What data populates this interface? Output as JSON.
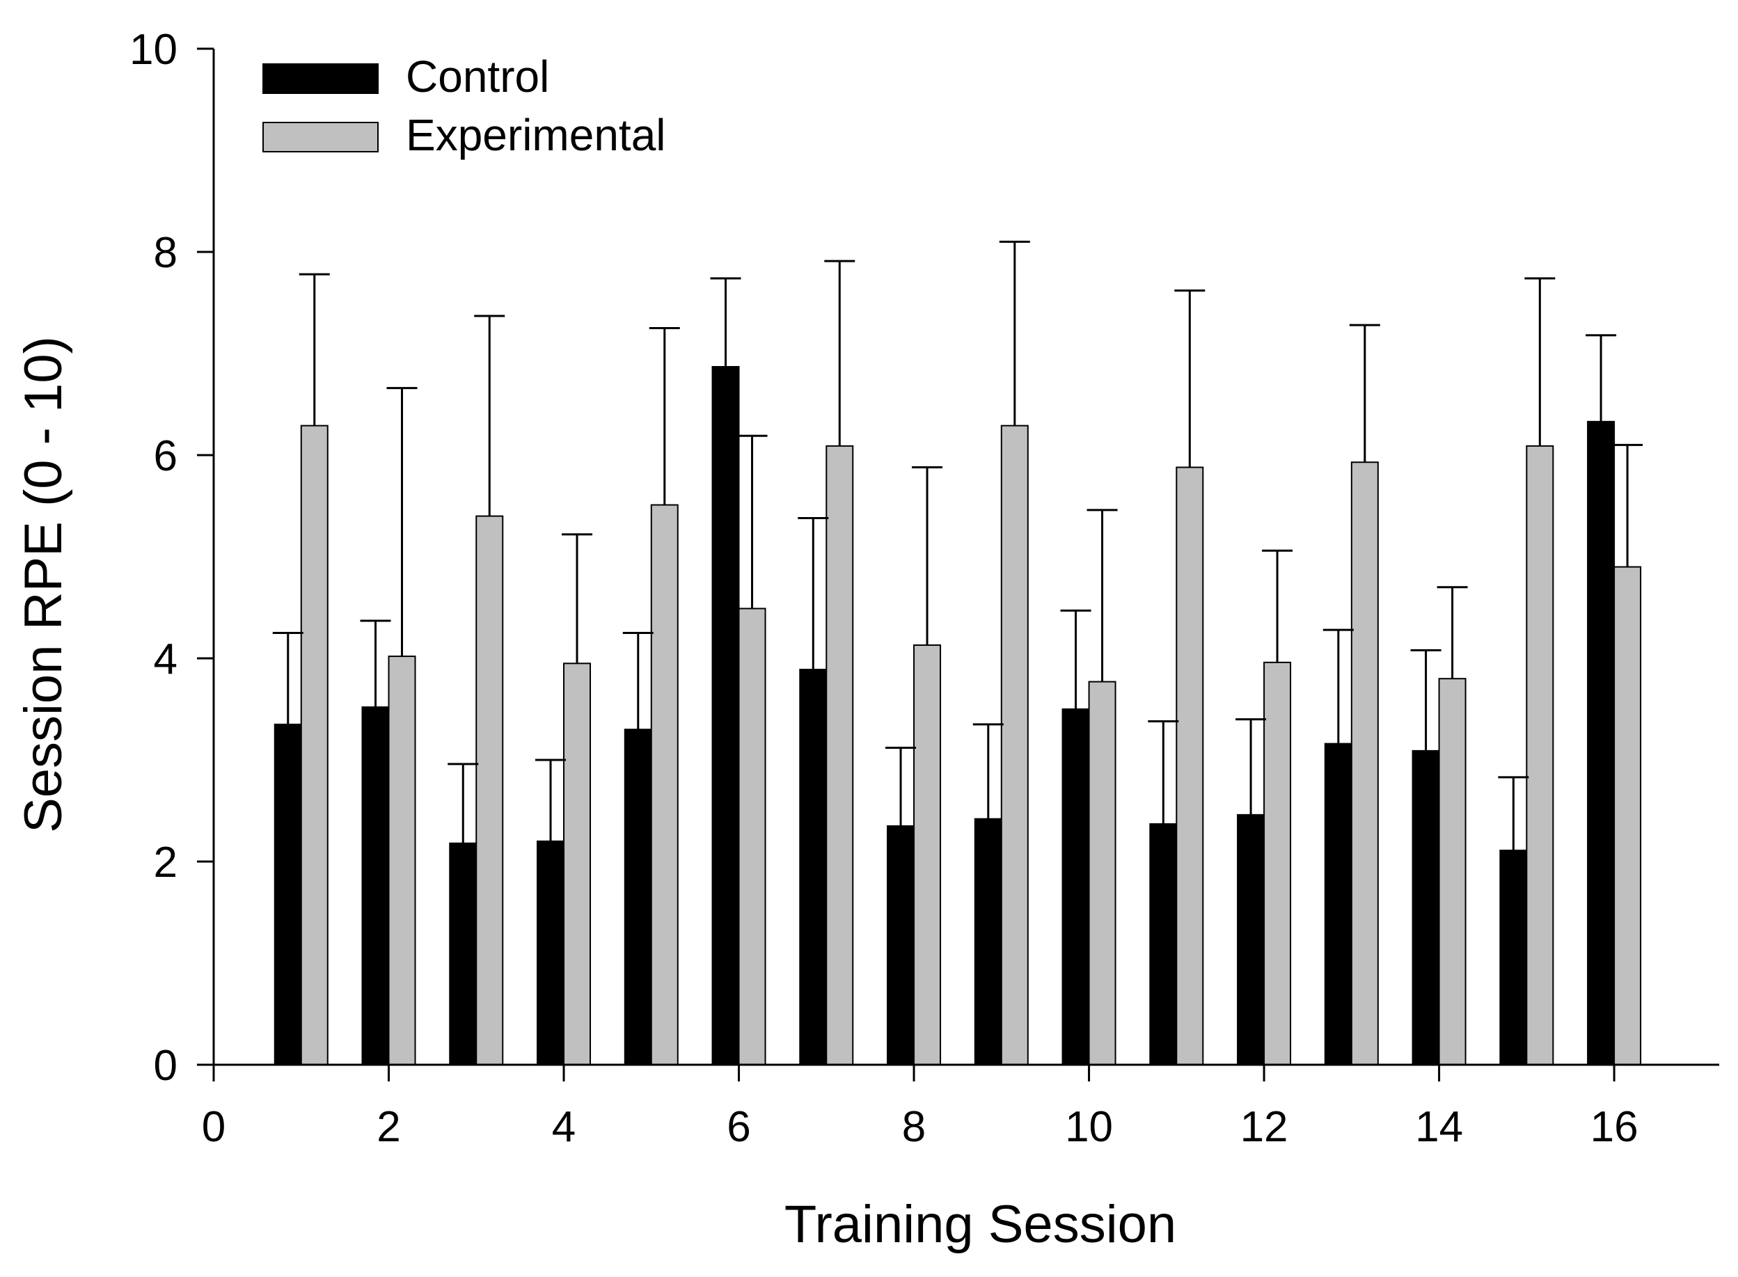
{
  "chart_data": {
    "type": "bar",
    "title": "",
    "xlabel": "Training Session",
    "ylabel": "Session RPE (0 - 10)",
    "xlim": [
      0,
      17.2
    ],
    "ylim": [
      0,
      10
    ],
    "x_ticks": [
      0,
      2,
      4,
      6,
      8,
      10,
      12,
      14,
      16
    ],
    "y_ticks": [
      0,
      2,
      4,
      6,
      8,
      10
    ],
    "legend_position": "top-left",
    "grid": false,
    "categories": [
      1,
      2,
      3,
      4,
      5,
      6,
      7,
      8,
      9,
      10,
      11,
      12,
      13,
      14,
      15,
      16
    ],
    "series": [
      {
        "name": "Control",
        "color": "#000000",
        "values": [
          3.35,
          3.52,
          2.18,
          2.2,
          3.3,
          6.87,
          3.89,
          2.35,
          2.42,
          3.5,
          2.37,
          2.46,
          3.16,
          3.09,
          2.11,
          6.33
        ],
        "error_upper": [
          4.25,
          4.37,
          2.96,
          3.0,
          4.25,
          7.74,
          5.38,
          3.12,
          3.35,
          4.47,
          3.38,
          3.4,
          4.28,
          4.08,
          2.83,
          7.18
        ]
      },
      {
        "name": "Experimental",
        "color": "#c0c0c0",
        "values": [
          6.29,
          4.02,
          5.4,
          3.95,
          5.51,
          4.49,
          6.09,
          4.13,
          6.29,
          3.77,
          5.88,
          3.96,
          5.93,
          3.8,
          6.09,
          4.9
        ],
        "error_upper": [
          7.78,
          6.66,
          7.37,
          5.22,
          7.25,
          6.19,
          7.91,
          5.88,
          8.1,
          5.46,
          7.62,
          5.06,
          7.28,
          4.7,
          7.74,
          6.1
        ]
      }
    ]
  }
}
